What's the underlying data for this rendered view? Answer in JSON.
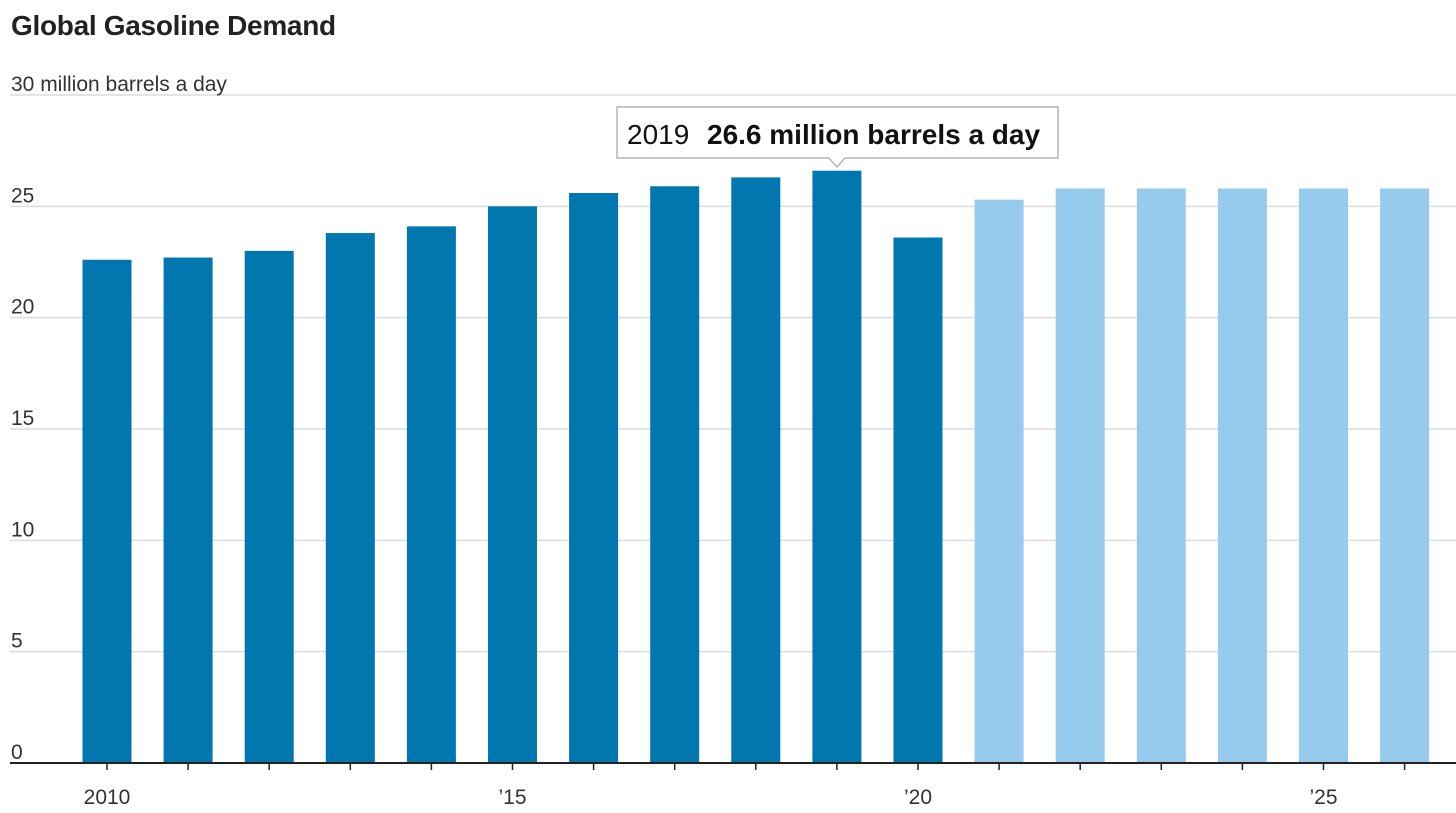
{
  "chart_data": {
    "type": "bar",
    "title": "Global Gasoline Demand",
    "y_top_label": "30 million barrels a day",
    "categories": [
      "2010",
      "2011",
      "2012",
      "2013",
      "2014",
      "2015",
      "2016",
      "2017",
      "2018",
      "2019",
      "2020",
      "2021",
      "2022",
      "2023",
      "2024",
      "2025",
      "2026"
    ],
    "values": [
      22.6,
      22.7,
      23.0,
      23.8,
      24.1,
      25.0,
      25.6,
      25.9,
      26.3,
      26.6,
      23.6,
      25.3,
      25.8,
      25.8,
      25.8,
      25.8,
      25.8
    ],
    "series_status": [
      "actual",
      "actual",
      "actual",
      "actual",
      "actual",
      "actual",
      "actual",
      "actual",
      "actual",
      "actual",
      "actual",
      "forecast",
      "forecast",
      "forecast",
      "forecast",
      "forecast",
      "forecast"
    ],
    "colors": {
      "actual": "#0077ae",
      "forecast": "#97cbed",
      "grid": "#dcdcdc",
      "axis": "#222222"
    },
    "ylim": [
      0,
      30
    ],
    "y_ticks": [
      0,
      5,
      10,
      15,
      20,
      25
    ],
    "x_tick_labels": [
      {
        "year": "2010",
        "label": "2010"
      },
      {
        "year": "2015",
        "label": "’15"
      },
      {
        "year": "2020",
        "label": "’20"
      },
      {
        "year": "2025",
        "label": "’25"
      }
    ],
    "tooltip": {
      "year": "2019",
      "value_text": "26.6 million barrels a day"
    },
    "grid": true
  }
}
